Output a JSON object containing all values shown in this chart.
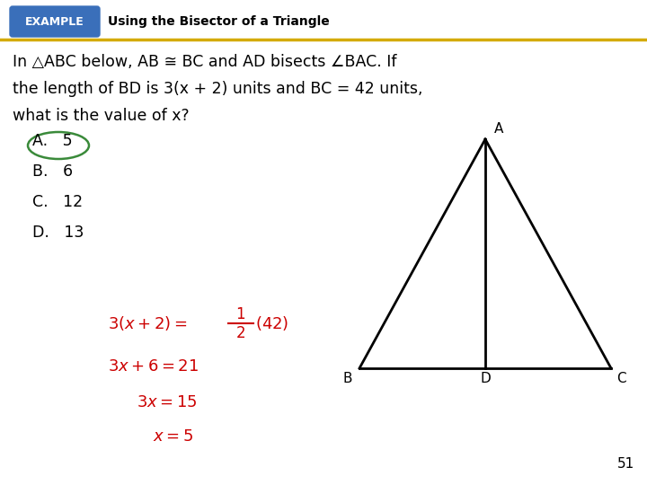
{
  "title": "Using the Bisector of a Triangle",
  "example_label": "EXAMPLE",
  "example_bg": "#3a6fba",
  "title_line_color": "#d4aa00",
  "problem_line1": "In △ABC below, AB ≅ BC and AD bisects ∠BAC. If",
  "problem_line2": "the length of BD is 3(x + 2) units and BC = 42 units,",
  "problem_line3": "what is the value of x?",
  "choices": [
    "A.   5",
    "B.   6",
    "C.   12",
    "D.   13"
  ],
  "circle_color": "#3a8a3a",
  "eq_color": "#cc0000",
  "triangle_A": [
    0.735,
    0.72
  ],
  "triangle_B": [
    0.56,
    0.42
  ],
  "triangle_C": [
    0.91,
    0.42
  ],
  "triangle_D": [
    0.735,
    0.42
  ],
  "page_number": "51",
  "bg_color": "#ffffff"
}
